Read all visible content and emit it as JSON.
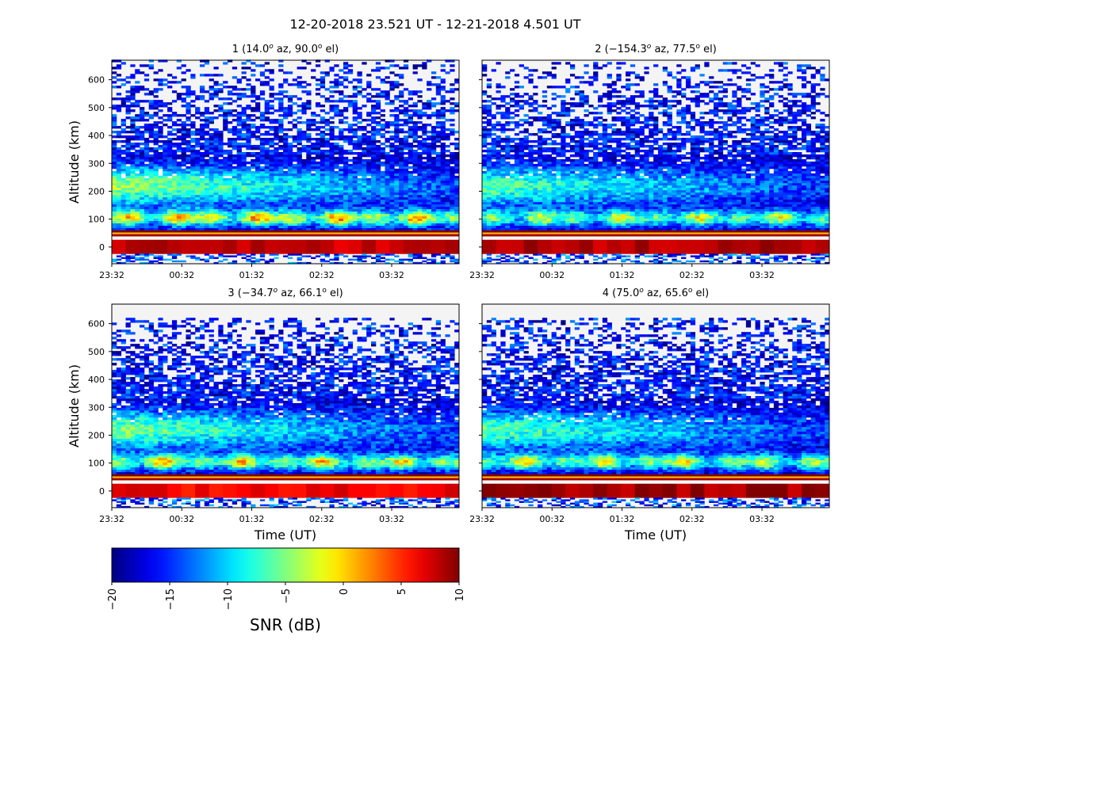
{
  "figure": {
    "title": "12-20-2018 23.521 UT - 12-21-2018 4.501 UT"
  },
  "chart_data": [
    {
      "type": "heatmap",
      "title": "1 (14.0° az,  90.0° el)",
      "title_parts": {
        "index": "1 (",
        "az": "14.0",
        "az_suffix": " az,  ",
        "el": "90.0",
        "el_suffix": " el)"
      },
      "ylabel": "Altitude (km)",
      "xlabel": "",
      "x_ticks": [
        "23:32",
        "00:32",
        "01:32",
        "02:32",
        "03:32"
      ],
      "y_ticks": [
        0,
        100,
        200,
        300,
        400,
        500,
        600
      ],
      "xlim": [
        "23:31",
        "04:30"
      ],
      "ylim": [
        -60,
        670
      ],
      "data_top_km": 670,
      "features": {
        "e_region_peak_snr": 1,
        "f_region_peak_snr": -4,
        "ground_band_snr": 8
      }
    },
    {
      "type": "heatmap",
      "title": "2 (−154.3° az,  77.5° el)",
      "title_parts": {
        "index": "2 (",
        "az": "−154.3",
        "az_suffix": " az,  ",
        "el": "77.5",
        "el_suffix": " el)"
      },
      "ylabel": "",
      "xlabel": "",
      "x_ticks": [
        "23:32",
        "00:32",
        "01:32",
        "02:32",
        "03:32"
      ],
      "y_ticks": [
        0,
        100,
        200,
        300,
        400,
        500,
        600
      ],
      "xlim": [
        "23:31",
        "04:30"
      ],
      "ylim": [
        -60,
        670
      ],
      "data_top_km": 660,
      "features": {
        "e_region_peak_snr": -3,
        "f_region_peak_snr": -6,
        "ground_band_snr": 8.5
      }
    },
    {
      "type": "heatmap",
      "title": "3 (−34.7° az,  66.1° el)",
      "title_parts": {
        "index": "3 (",
        "az": "−34.7",
        "az_suffix": " az,  ",
        "el": "66.1",
        "el_suffix": " el)"
      },
      "ylabel": "Altitude (km)",
      "xlabel": "Time (UT)",
      "x_ticks": [
        "23:32",
        "00:32",
        "01:32",
        "02:32",
        "03:32"
      ],
      "y_ticks": [
        0,
        100,
        200,
        300,
        400,
        500,
        600
      ],
      "xlim": [
        "23:31",
        "04:30"
      ],
      "ylim": [
        -60,
        670
      ],
      "data_top_km": 620,
      "features": {
        "e_region_peak_snr": -1,
        "f_region_peak_snr": -5,
        "ground_band_snr": 6.5
      }
    },
    {
      "type": "heatmap",
      "title": "4 (75.0° az,  65.6° el)",
      "title_parts": {
        "index": "4 (",
        "az": "75.0",
        "az_suffix": " az,  ",
        "el": "65.6",
        "el_suffix": " el)"
      },
      "ylabel": "",
      "xlabel": "Time (UT)",
      "x_ticks": [
        "23:32",
        "00:32",
        "01:32",
        "02:32",
        "03:32"
      ],
      "y_ticks": [
        0,
        100,
        200,
        300,
        400,
        500,
        600
      ],
      "xlim": [
        "23:31",
        "04:30"
      ],
      "ylim": [
        -60,
        670
      ],
      "data_top_km": 620,
      "features": {
        "e_region_peak_snr": -2,
        "f_region_peak_snr": -6,
        "ground_band_snr": 9
      }
    }
  ],
  "colorbar": {
    "label": "SNR (dB)",
    "colormap": "jet",
    "range": [
      -20,
      10
    ],
    "ticks": [
      "−20",
      "−15",
      "−10",
      "−5",
      "0",
      "5",
      "10"
    ]
  }
}
